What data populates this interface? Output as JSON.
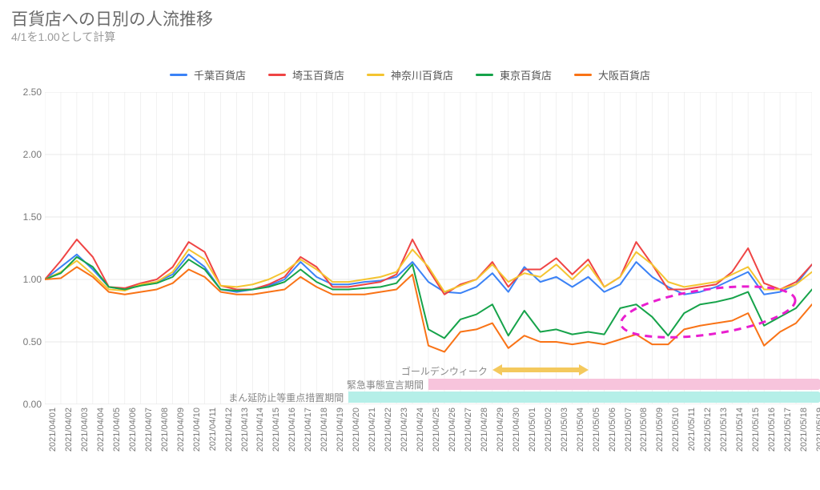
{
  "title": "百貨店への日別の人流推移",
  "subtitle": "4/1を1.00として計算",
  "chart": {
    "type": "line",
    "ylim": [
      0,
      2.5
    ],
    "yticks": [
      0.0,
      0.5,
      1.0,
      1.5,
      2.0,
      2.5
    ],
    "ytick_labels": [
      "0.00",
      "0.50",
      "1.00",
      "1.50",
      "2.00",
      "2.50"
    ],
    "grid_color": "#e8e8e8",
    "axis_color": "#cfcfcf",
    "background_color": "#ffffff",
    "line_width": 2,
    "dates": [
      "2021/04/01",
      "2021/04/02",
      "2021/04/03",
      "2021/04/04",
      "2021/04/05",
      "2021/04/06",
      "2021/04/07",
      "2021/04/08",
      "2021/04/09",
      "2021/04/10",
      "2021/04/11",
      "2021/04/12",
      "2021/04/13",
      "2021/04/14",
      "2021/04/15",
      "2021/04/16",
      "2021/04/17",
      "2021/04/18",
      "2021/04/19",
      "2021/04/20",
      "2021/04/21",
      "2021/04/22",
      "2021/04/23",
      "2021/04/24",
      "2021/04/25",
      "2021/04/26",
      "2021/04/27",
      "2021/04/28",
      "2021/04/29",
      "2021/04/30",
      "2021/05/01",
      "2021/05/02",
      "2021/05/03",
      "2021/05/04",
      "2021/05/05",
      "2021/05/06",
      "2021/05/07",
      "2021/05/08",
      "2021/05/09",
      "2021/05/10",
      "2021/05/11",
      "2021/05/12",
      "2021/05/13",
      "2021/05/14",
      "2021/05/15",
      "2021/05/16",
      "2021/05/17",
      "2021/05/18",
      "2021/05/19"
    ],
    "series": [
      {
        "name": "千葉百貨店",
        "color": "#3b82f6",
        "values": [
          1.0,
          1.1,
          1.2,
          1.08,
          0.94,
          0.92,
          0.96,
          0.98,
          1.04,
          1.2,
          1.1,
          0.92,
          0.9,
          0.92,
          0.95,
          1.0,
          1.14,
          1.02,
          0.96,
          0.96,
          0.98,
          0.99,
          1.02,
          1.14,
          0.98,
          0.9,
          0.89,
          0.94,
          1.05,
          0.9,
          1.1,
          0.98,
          1.02,
          0.94,
          1.02,
          0.9,
          0.96,
          1.14,
          1.02,
          0.94,
          0.88,
          0.9,
          0.94,
          1.0,
          1.06,
          0.88,
          0.9,
          0.96,
          1.12
        ]
      },
      {
        "name": "埼玉百貨店",
        "color": "#ef4444",
        "values": [
          1.0,
          1.15,
          1.32,
          1.18,
          0.94,
          0.93,
          0.97,
          1.0,
          1.1,
          1.3,
          1.22,
          0.95,
          0.92,
          0.92,
          0.96,
          1.02,
          1.18,
          1.1,
          0.94,
          0.94,
          0.96,
          0.98,
          1.04,
          1.32,
          1.08,
          0.88,
          0.96,
          1.0,
          1.14,
          0.94,
          1.08,
          1.08,
          1.17,
          1.04,
          1.16,
          0.94,
          1.02,
          1.3,
          1.12,
          0.92,
          0.92,
          0.94,
          0.96,
          1.06,
          1.25,
          0.97,
          0.92,
          0.98,
          1.12
        ]
      },
      {
        "name": "神奈川百貨店",
        "color": "#f4c430",
        "values": [
          1.0,
          1.06,
          1.15,
          1.04,
          0.92,
          0.91,
          0.96,
          0.98,
          1.06,
          1.24,
          1.16,
          0.95,
          0.94,
          0.96,
          1.0,
          1.06,
          1.16,
          1.08,
          0.98,
          0.98,
          1.0,
          1.02,
          1.06,
          1.24,
          1.1,
          0.9,
          0.95,
          1.0,
          1.12,
          0.98,
          1.05,
          1.02,
          1.12,
          1.0,
          1.12,
          0.94,
          1.02,
          1.22,
          1.12,
          0.98,
          0.94,
          0.96,
          0.98,
          1.04,
          1.1,
          0.92,
          0.92,
          0.96,
          1.06
        ]
      },
      {
        "name": "東京百貨店",
        "color": "#16a34a",
        "values": [
          1.0,
          1.05,
          1.18,
          1.1,
          0.94,
          0.92,
          0.95,
          0.97,
          1.02,
          1.16,
          1.08,
          0.92,
          0.91,
          0.92,
          0.94,
          0.98,
          1.08,
          0.98,
          0.92,
          0.92,
          0.93,
          0.94,
          0.97,
          1.12,
          0.6,
          0.53,
          0.68,
          0.72,
          0.8,
          0.55,
          0.75,
          0.58,
          0.6,
          0.56,
          0.58,
          0.56,
          0.77,
          0.8,
          0.7,
          0.55,
          0.73,
          0.8,
          0.82,
          0.85,
          0.9,
          0.63,
          0.7,
          0.77,
          0.92
        ]
      },
      {
        "name": "大阪百貨店",
        "color": "#f97316",
        "values": [
          1.0,
          1.01,
          1.1,
          1.02,
          0.9,
          0.88,
          0.9,
          0.92,
          0.97,
          1.08,
          1.02,
          0.9,
          0.88,
          0.88,
          0.9,
          0.92,
          1.02,
          0.94,
          0.88,
          0.88,
          0.88,
          0.9,
          0.92,
          1.04,
          0.47,
          0.42,
          0.58,
          0.6,
          0.65,
          0.45,
          0.55,
          0.5,
          0.5,
          0.48,
          0.5,
          0.48,
          0.52,
          0.56,
          0.48,
          0.48,
          0.6,
          0.63,
          0.65,
          0.67,
          0.73,
          0.47,
          0.58,
          0.65,
          0.8
        ]
      }
    ],
    "annotations": {
      "gw": {
        "label": "ゴールデンウィーク",
        "start_idx": 28,
        "end_idx": 34,
        "color": "#f4c95d"
      },
      "emergency": {
        "label": "緊急事態宣言期間",
        "start_idx": 24,
        "end_idx": 48,
        "color": "#f7c4dc"
      },
      "manbou": {
        "label": "まん延防止等重点措置期間",
        "start_idx": 19,
        "end_idx": 48,
        "color": "#b5efe8"
      },
      "dashed_oval": {
        "color": "#e91ecf",
        "cx_idx": 41.5,
        "cy_val": 0.74,
        "rx_idx": 5.5,
        "ry_val": 0.18
      }
    }
  }
}
